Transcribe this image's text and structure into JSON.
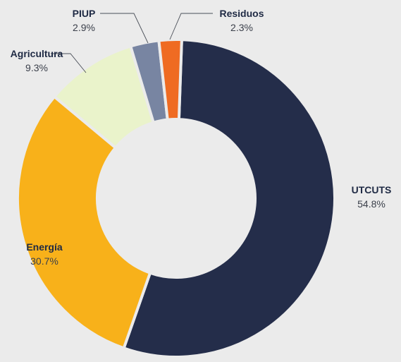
{
  "chart_data": {
    "type": "pie",
    "donut": true,
    "legend": "none",
    "slices": [
      {
        "name": "UTCUTS",
        "value": 54.8,
        "label": "54.8%",
        "color": "#242d4a"
      },
      {
        "name": "Energía",
        "value": 30.7,
        "label": "30.7%",
        "color": "#f8b11a"
      },
      {
        "name": "Agricultura",
        "value": 9.3,
        "label": "9.3%",
        "color": "#eaf3cb"
      },
      {
        "name": "PIUP",
        "value": 2.9,
        "label": "2.9%",
        "color": "#7885a2"
      },
      {
        "name": "Residuos",
        "value": 2.3,
        "label": "2.3%",
        "color": "#ef6b22"
      }
    ]
  }
}
